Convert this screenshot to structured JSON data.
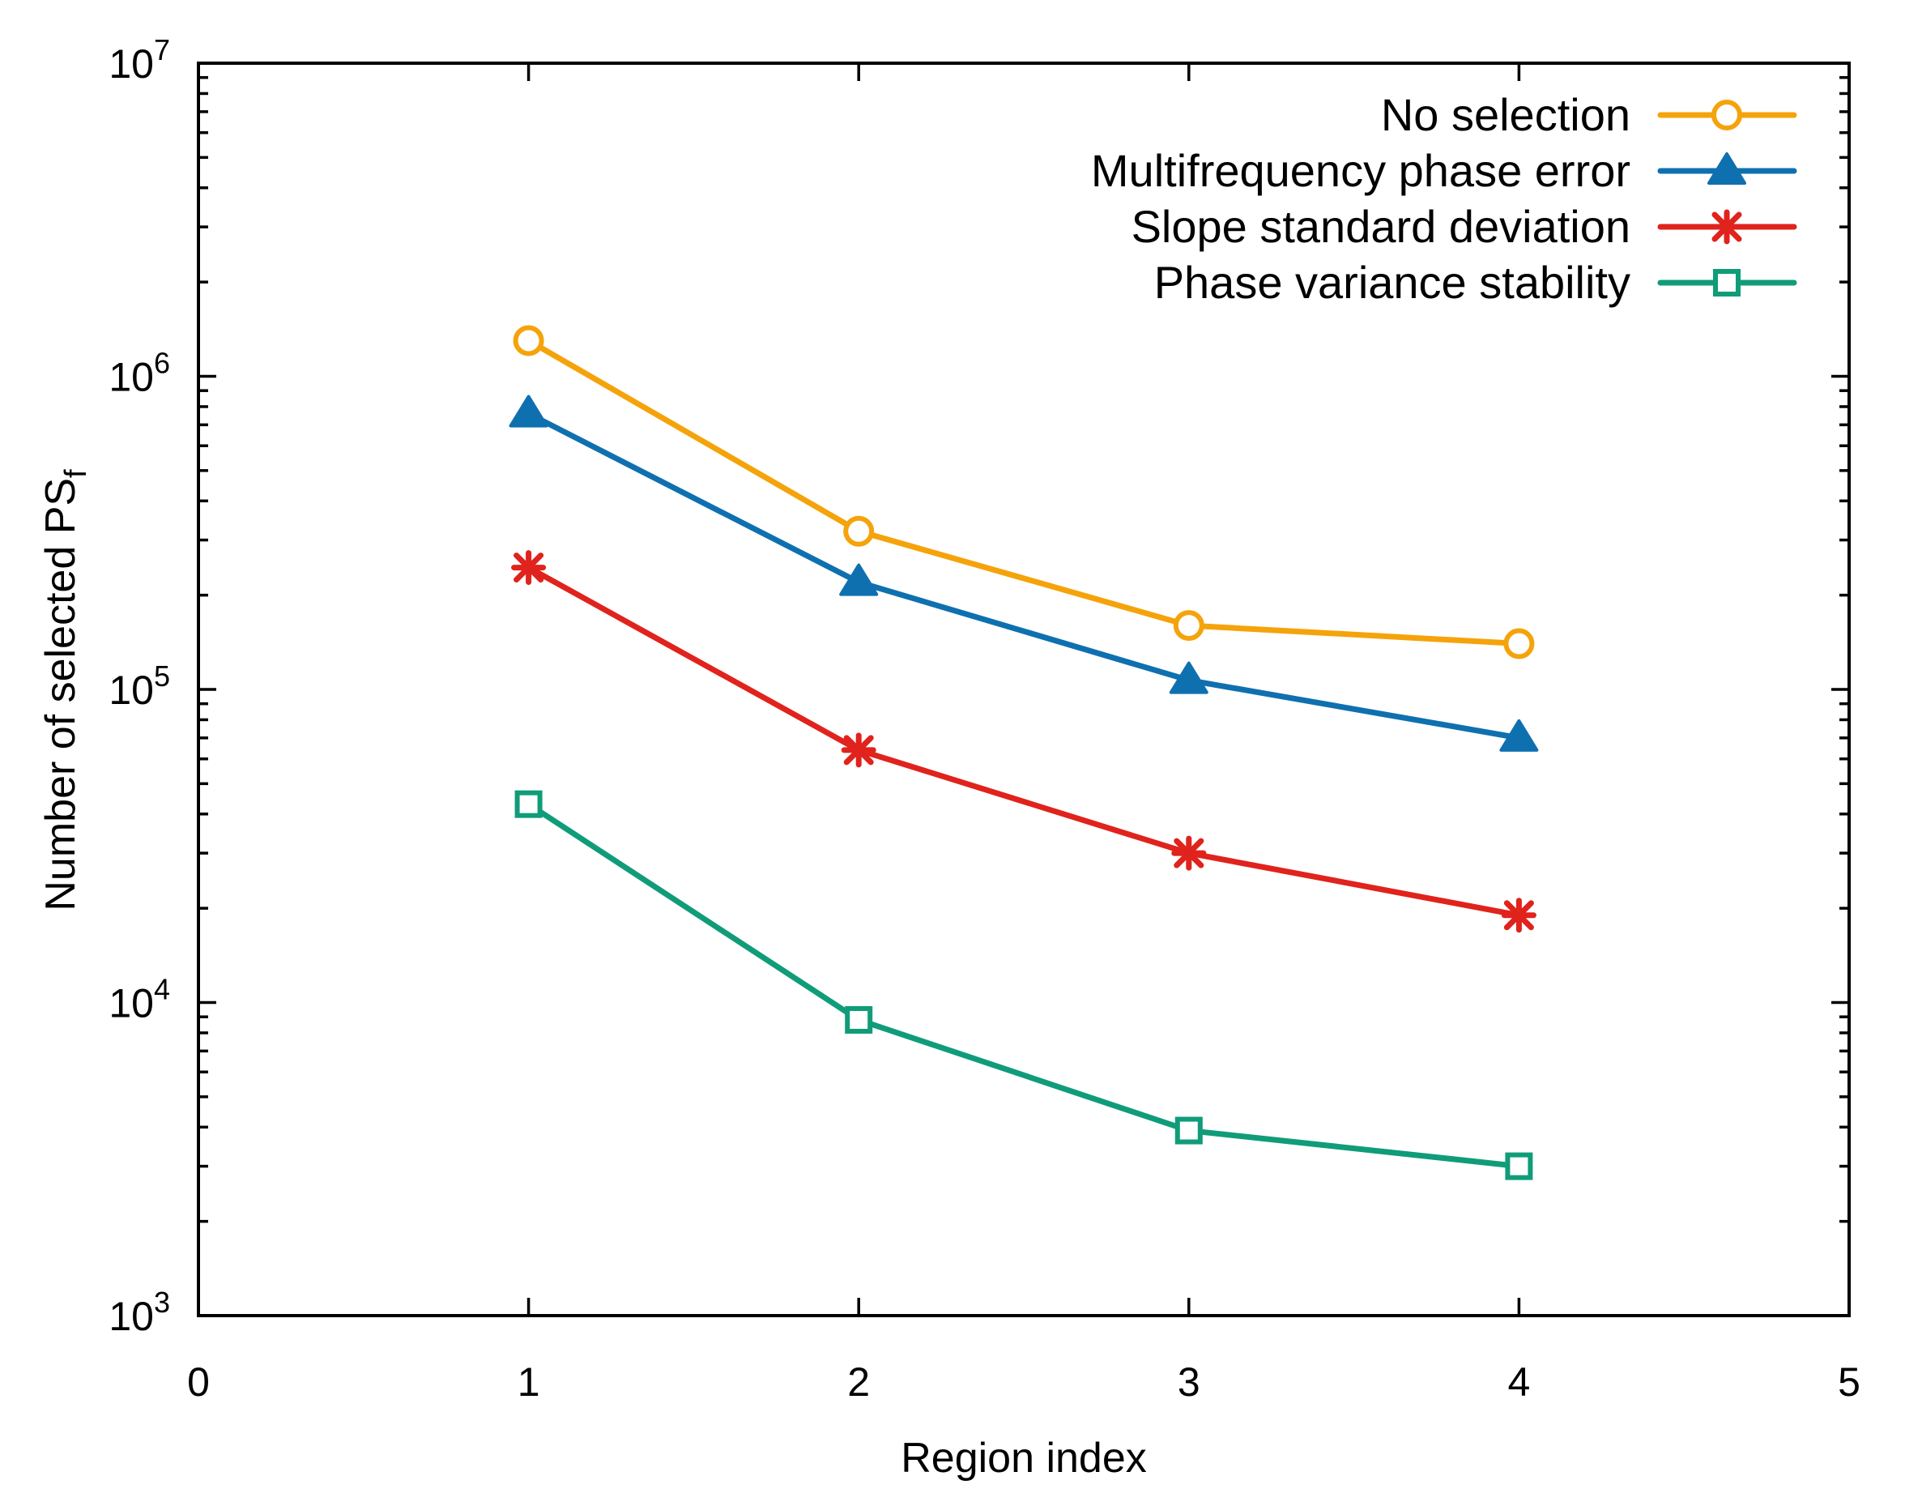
{
  "chart_data": {
    "type": "line",
    "title": "",
    "xlabel": "Region index",
    "ylabel": "Number of selected PS",
    "ylabel_subscript": "f",
    "xlim": [
      0,
      5
    ],
    "ylim": [
      1000,
      10000000
    ],
    "yscale": "log",
    "x_ticks": [
      "0",
      "1",
      "2",
      "3",
      "4",
      "5"
    ],
    "y_ticks": [
      {
        "base": "10",
        "exp": "3"
      },
      {
        "base": "10",
        "exp": "4"
      },
      {
        "base": "10",
        "exp": "5"
      },
      {
        "base": "10",
        "exp": "6"
      },
      {
        "base": "10",
        "exp": "7"
      }
    ],
    "legend_position": "top-right",
    "grid": false,
    "x": [
      1,
      2,
      3,
      4
    ],
    "series": [
      {
        "name": "No selection",
        "values": [
          1300000,
          320000,
          160000,
          140000
        ],
        "color": "#F5A30B",
        "marker": "circle"
      },
      {
        "name": "Multifrequency phase error",
        "values": [
          760000,
          220000,
          107000,
          70000
        ],
        "color": "#0F70B0",
        "marker": "triangle"
      },
      {
        "name": "Slope standard deviation",
        "values": [
          245000,
          64000,
          30000,
          19000
        ],
        "color": "#E0231C",
        "marker": "star"
      },
      {
        "name": "Phase variance stability",
        "values": [
          43000,
          8800,
          3900,
          3000
        ],
        "color": "#109C79",
        "marker": "square"
      }
    ]
  }
}
